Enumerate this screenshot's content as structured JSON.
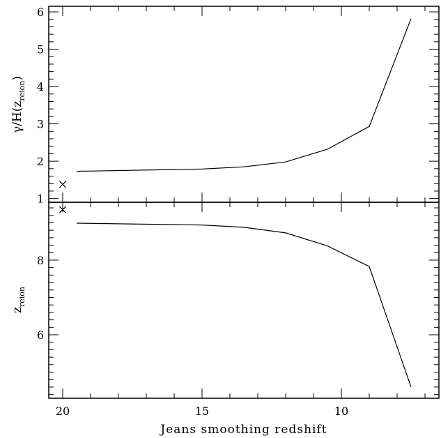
{
  "chart_data": [
    {
      "type": "line",
      "panel": "top",
      "ylabel_main": "γ/H(z",
      "ylabel_sub": "reion",
      "ylabel_close": ")",
      "xlabel": "Jeans smoothing redshift",
      "xlim": [
        20.5,
        6.5
      ],
      "ylim": [
        0.9,
        6.15
      ],
      "x_reversed": true,
      "yticks": [
        1,
        2,
        3,
        4,
        5,
        6
      ],
      "x": [
        19.5,
        15.0,
        13.5,
        12.0,
        10.5,
        9.0,
        7.5
      ],
      "values": [
        1.73,
        1.79,
        1.85,
        1.98,
        2.32,
        2.93,
        5.82
      ],
      "marker_points": [
        {
          "x": 20.0,
          "y": 1.38,
          "symbol": "×"
        }
      ]
    },
    {
      "type": "line",
      "panel": "bottom",
      "ylabel_main": "z",
      "ylabel_sub": "reion",
      "xlabel": "Jeans smoothing redshift",
      "xlim": [
        20.5,
        6.5
      ],
      "ylim": [
        4.3,
        9.55
      ],
      "x_reversed": true,
      "yticks": [
        6,
        8
      ],
      "x": [
        19.5,
        15.0,
        13.5,
        12.0,
        10.5,
        9.0,
        7.5
      ],
      "values": [
        8.99,
        8.94,
        8.88,
        8.73,
        8.38,
        7.83,
        4.6
      ],
      "marker_points": [
        {
          "x": 20.0,
          "y": 9.35,
          "symbol": "×"
        }
      ]
    }
  ],
  "x_axis": {
    "tick_labels": [
      "20",
      "15",
      "10"
    ],
    "label": "Jeans smoothing redshift"
  }
}
